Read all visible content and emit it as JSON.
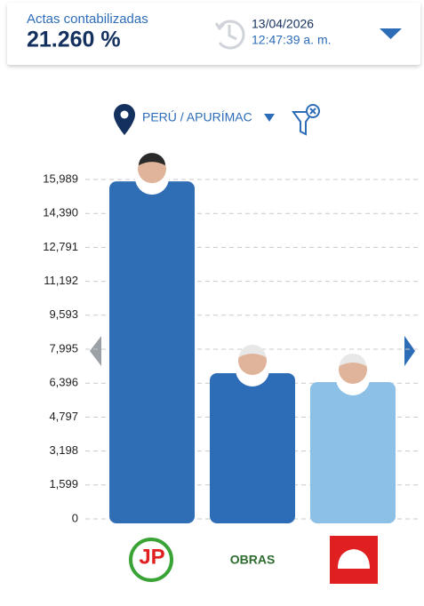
{
  "header": {
    "label": "Actas contabilizadas",
    "percentage": "21.260 %",
    "date": "13/04/2026",
    "time": "12:47:39 a. m."
  },
  "location": "PERÚ / APURÍMAC",
  "chart_data": {
    "type": "bar",
    "categories": [
      "JP",
      "OBRAS",
      null
    ],
    "values": [
      15900,
      6865,
      6446
    ],
    "colors": [
      "#2f6db5",
      "#2d6cb7",
      "#8cc0e6"
    ],
    "ylim": [
      0,
      15989
    ],
    "yticks": [
      0,
      {
        "value": 1599,
        "label": "1,599"
      },
      {
        "value": 3198,
        "label": "3,198"
      },
      {
        "value": 4797,
        "label": "4,797"
      },
      {
        "value": 6396,
        "label": "6,396"
      },
      {
        "value": 7995,
        "label": "7,995"
      },
      {
        "value": 9593,
        "label": "9,593"
      },
      {
        "value": 11192,
        "label": "11,192"
      },
      {
        "value": 12791,
        "label": "12,791"
      },
      {
        "value": 14390,
        "label": "14,390"
      },
      {
        "value": 15989,
        "label": "15,989"
      }
    ],
    "grid": true
  }
}
